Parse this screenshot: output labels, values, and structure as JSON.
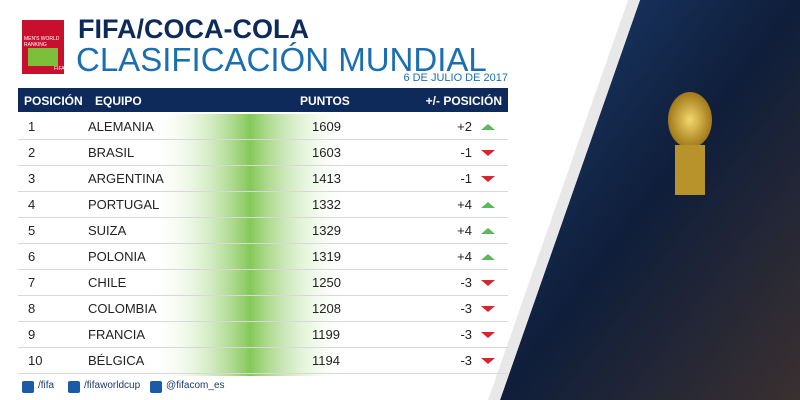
{
  "header": {
    "logo_text": "MEN'S WORLD RANKING",
    "logo_brand": "FIFA",
    "title": "FIFA/COCA-COLA",
    "subtitle": "CLASIFICACIÓN MUNDIAL",
    "date": "6 DE JULIO DE 2017"
  },
  "table": {
    "columns": [
      "POSICIÓN",
      "EQUIPO",
      "PUNTOS",
      "+/- POSICIÓN"
    ],
    "rows": [
      [
        "1",
        "ALEMANIA",
        "1609",
        "+2"
      ],
      [
        "2",
        "BRASIL",
        "1603",
        "-1"
      ],
      [
        "3",
        "ARGENTINA",
        "1413",
        "-1"
      ],
      [
        "4",
        "PORTUGAL",
        "1332",
        "+4"
      ],
      [
        "5",
        "SUIZA",
        "1329",
        "+4"
      ],
      [
        "6",
        "POLONIA",
        "1319",
        "+4"
      ],
      [
        "7",
        "CHILE",
        "1250",
        "-3"
      ],
      [
        "8",
        "COLOMBIA",
        "1208",
        "-3"
      ],
      [
        "9",
        "FRANCIA",
        "1199",
        "-3"
      ],
      [
        "10",
        "BÉLGICA",
        "1194",
        "-3"
      ]
    ]
  },
  "footer": {
    "links": [
      "/fifa",
      "/fifaworldcup",
      "@fifacom_es"
    ]
  }
}
